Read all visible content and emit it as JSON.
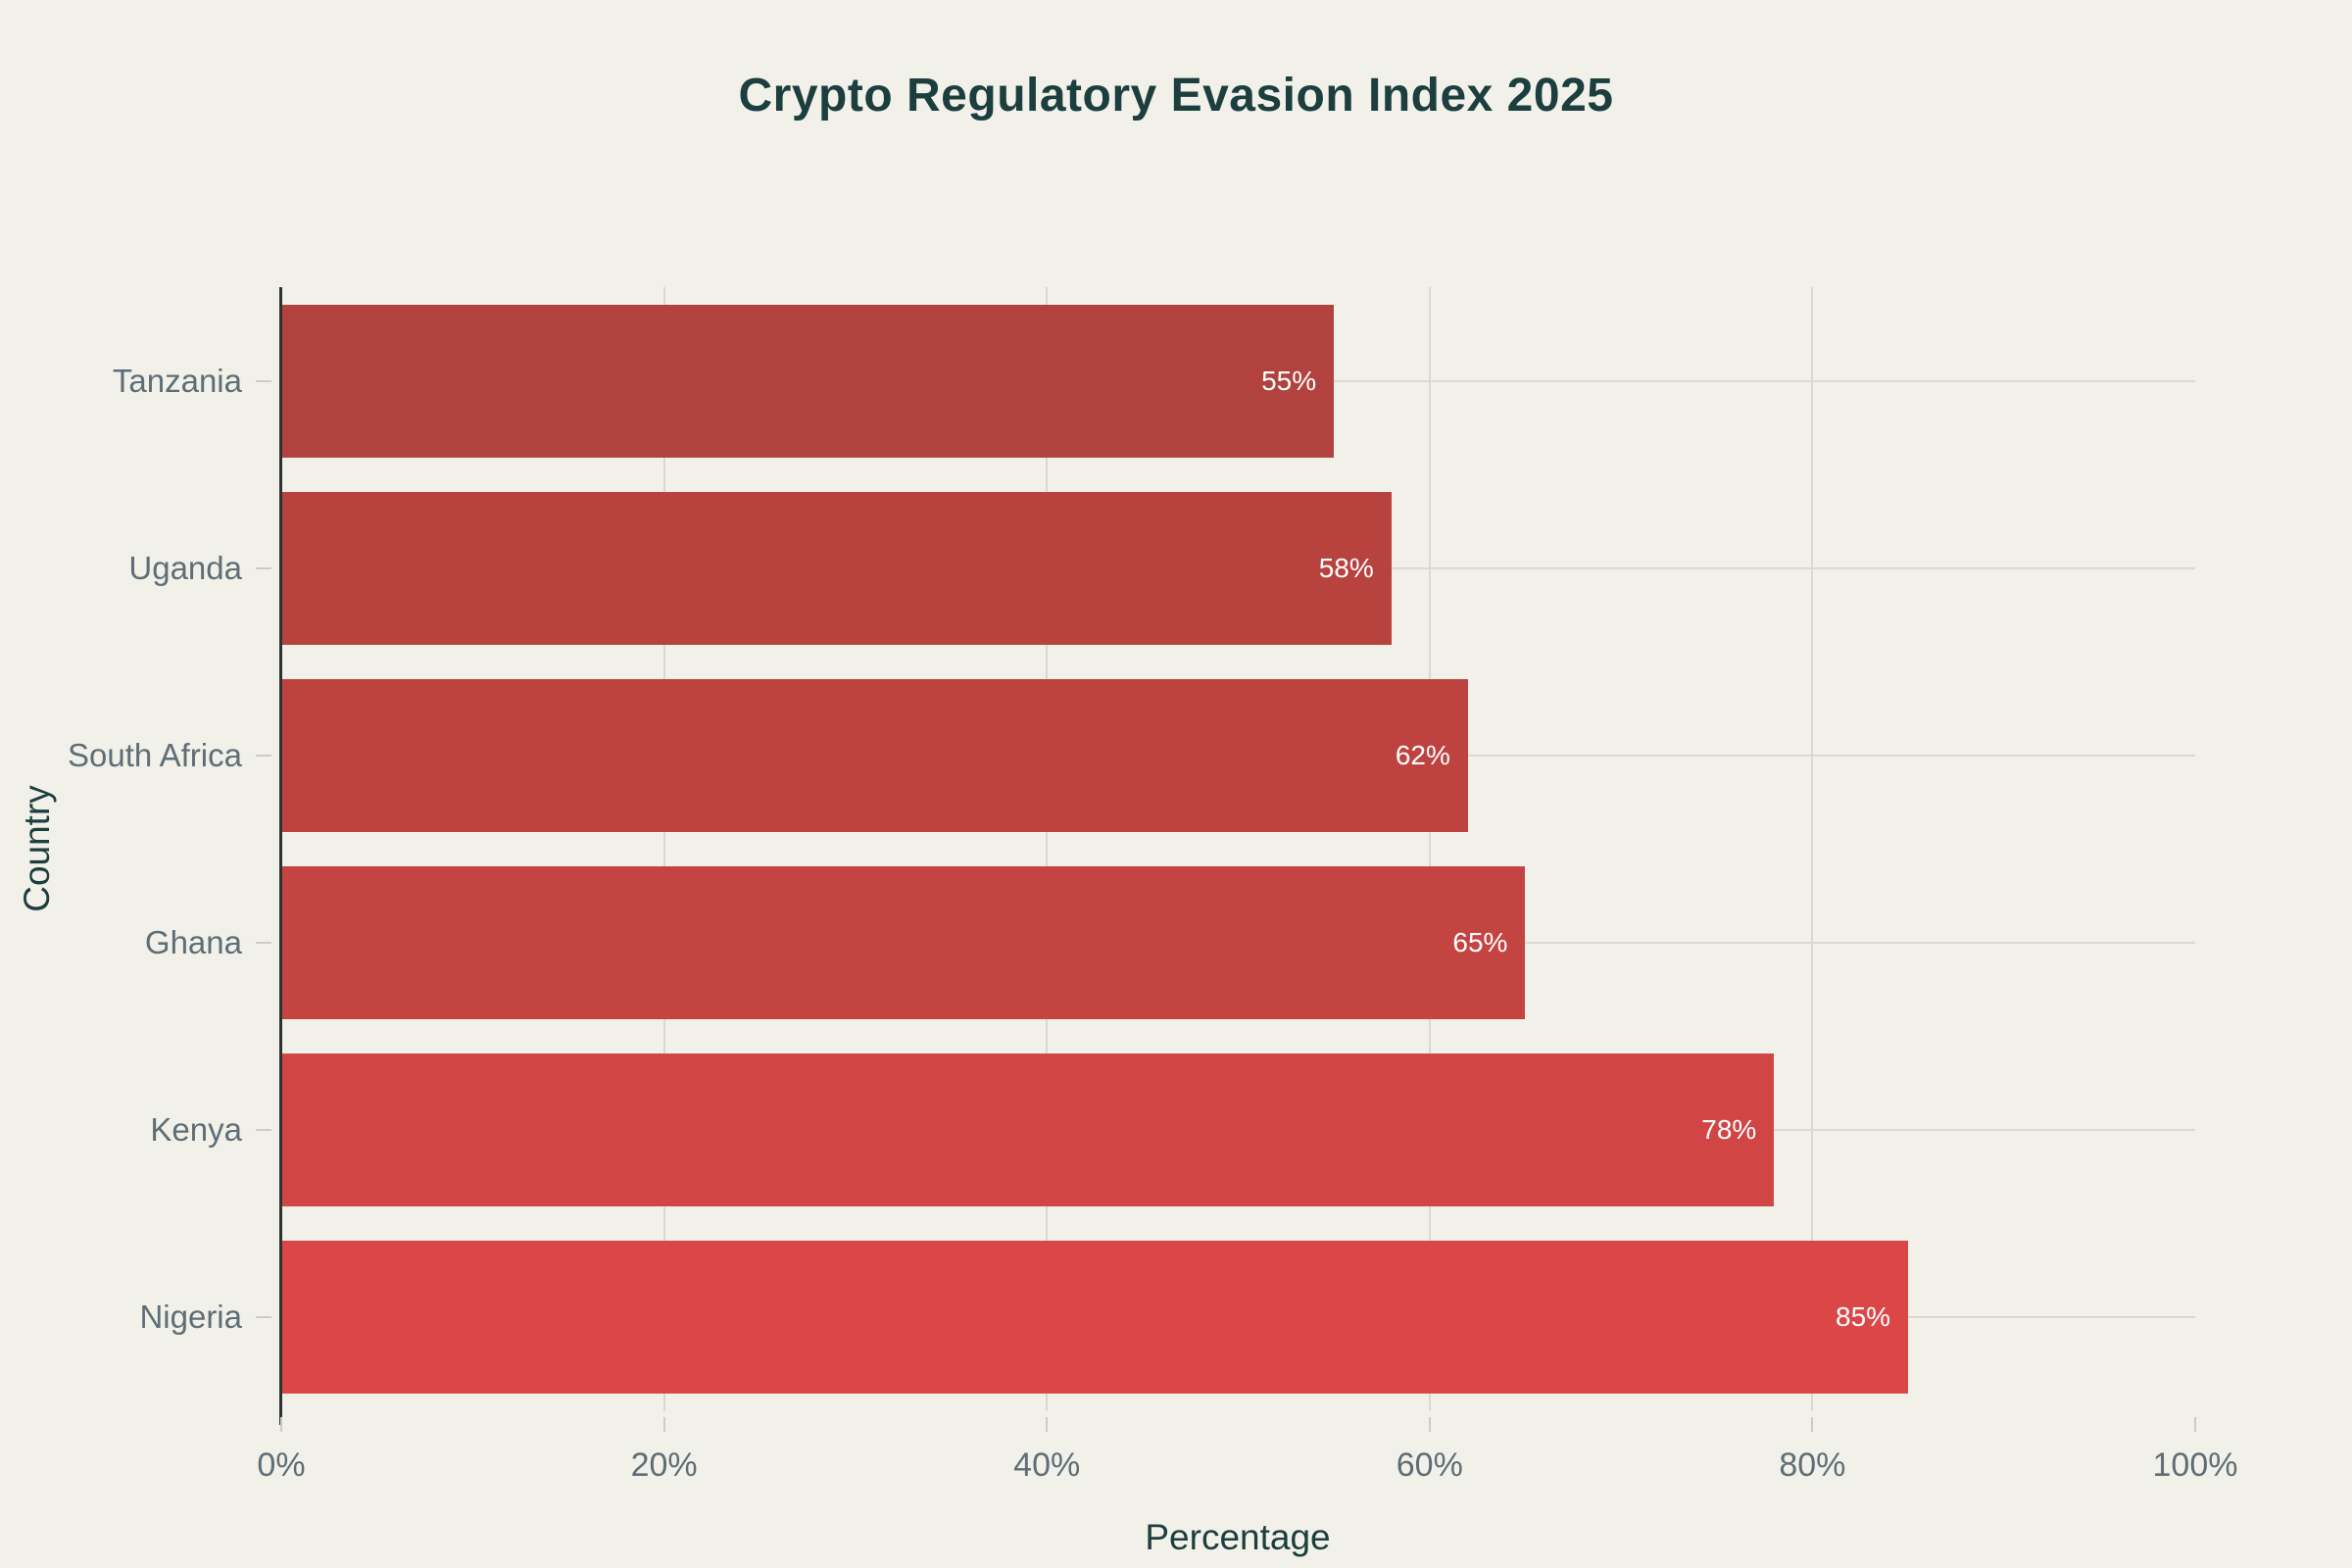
{
  "chart_data": {
    "type": "bar",
    "orientation": "horizontal",
    "title": "Crypto Regulatory Evasion Index 2025",
    "xlabel": "Percentage",
    "ylabel": "Country",
    "categories": [
      "Tanzania",
      "Uganda",
      "South Africa",
      "Ghana",
      "Kenya",
      "Nigeria"
    ],
    "values": [
      55,
      58,
      62,
      65,
      78,
      85
    ],
    "value_labels": [
      "55%",
      "58%",
      "62%",
      "65%",
      "78%",
      "85%"
    ],
    "bar_colors": [
      "#b1423e",
      "#b7423e",
      "#be4340",
      "#c44442",
      "#d14545",
      "#db4747"
    ],
    "x_tick_labels": [
      "0%",
      "20%",
      "40%",
      "60%",
      "80%",
      "100%"
    ],
    "x_tick_values": [
      0,
      20,
      40,
      60,
      80,
      100
    ],
    "xlim": [
      0,
      100
    ],
    "grid": true,
    "legend": false,
    "colors": {
      "background": "#f1f1ea",
      "title_text": "#1d3e3e",
      "axis_title_text": "#1d3e3e",
      "tick_label_text": "#5f6e76",
      "gridline": "#d9d9d1",
      "y_axis_line": "#2e3332",
      "value_label_text": "#ffffff"
    }
  }
}
